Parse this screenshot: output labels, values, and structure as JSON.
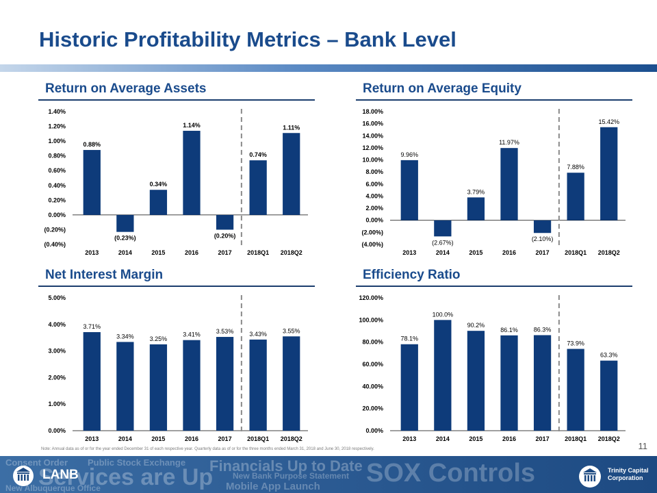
{
  "title": "Historic Profitability Metrics – Bank Level",
  "panels": {
    "roaa": {
      "heading": "Return on Average Assets"
    },
    "roae": {
      "heading": "Return on Average Equity"
    },
    "nim": {
      "heading": "Net Interest Margin"
    },
    "eff": {
      "heading": "Efficiency Ratio"
    }
  },
  "chart_data": [
    {
      "id": "roaa",
      "type": "bar",
      "title": "Return on Average Assets",
      "categories": [
        "2013",
        "2014",
        "2015",
        "2016",
        "2017",
        "2018Q1",
        "2018Q2"
      ],
      "values": [
        0.88,
        -0.23,
        0.34,
        1.14,
        -0.2,
        0.74,
        1.11
      ],
      "data_labels": [
        "0.88%",
        "(0.23%)",
        "0.34%",
        "1.14%",
        "(0.20%)",
        "0.74%",
        "1.11%"
      ],
      "ylim": [
        -0.4,
        1.4
      ],
      "yticks": [
        -0.4,
        -0.2,
        0.0,
        0.2,
        0.4,
        0.6,
        0.8,
        1.0,
        1.2,
        1.4
      ],
      "ytick_labels": [
        "(0.40%)",
        "(0.20%)",
        "0.00%",
        "0.20%",
        "0.40%",
        "0.60%",
        "0.80%",
        "1.00%",
        "1.20%",
        "1.40%"
      ],
      "divider_after": "2017",
      "bar_color": "#0e3b7a"
    },
    {
      "id": "roae",
      "type": "bar",
      "title": "Return on Average Equity",
      "categories": [
        "2013",
        "2014",
        "2015",
        "2016",
        "2017",
        "2018Q1",
        "2018Q2"
      ],
      "values": [
        9.96,
        -2.67,
        3.79,
        11.97,
        -2.1,
        7.88,
        15.42
      ],
      "data_labels": [
        "9.96%",
        "(2.67%)",
        "3.79%",
        "11.97%",
        "(2.10%)",
        "7.88%",
        "15.42%"
      ],
      "ylim": [
        -4,
        18
      ],
      "yticks": [
        -4,
        -2,
        0,
        2,
        4,
        6,
        8,
        10,
        12,
        14,
        16,
        18
      ],
      "ytick_labels": [
        "(4.00%)",
        "(2.00%)",
        "0.00%",
        "2.00%",
        "4.00%",
        "6.00%",
        "8.00%",
        "10.00%",
        "12.00%",
        "14.00%",
        "16.00%",
        "18.00%"
      ],
      "divider_after": "2017",
      "bar_color": "#0e3b7a"
    },
    {
      "id": "nim",
      "type": "bar",
      "title": "Net Interest Margin",
      "categories": [
        "2013",
        "2014",
        "2015",
        "2016",
        "2017",
        "2018Q1",
        "2018Q2"
      ],
      "values": [
        3.71,
        3.34,
        3.25,
        3.41,
        3.53,
        3.43,
        3.55
      ],
      "data_labels": [
        "3.71%",
        "3.34%",
        "3.25%",
        "3.41%",
        "3.53%",
        "3.43%",
        "3.55%"
      ],
      "ylim": [
        0,
        5
      ],
      "yticks": [
        0,
        1,
        2,
        3,
        4,
        5
      ],
      "ytick_labels": [
        "0.00%",
        "1.00%",
        "2.00%",
        "3.00%",
        "4.00%",
        "5.00%"
      ],
      "divider_after": "2017",
      "bar_color": "#0e3b7a"
    },
    {
      "id": "eff",
      "type": "bar",
      "title": "Efficiency Ratio",
      "categories": [
        "2013",
        "2014",
        "2015",
        "2016",
        "2017",
        "2018Q1",
        "2018Q2"
      ],
      "values": [
        78.1,
        100.0,
        90.2,
        86.1,
        86.3,
        73.9,
        63.3
      ],
      "data_labels": [
        "78.1%",
        "100.0%",
        "90.2%",
        "86.1%",
        "86.3%",
        "73.9%",
        "63.3%"
      ],
      "ylim": [
        0,
        120
      ],
      "yticks": [
        0,
        20,
        40,
        60,
        80,
        100,
        120
      ],
      "ytick_labels": [
        "0.00%",
        "20.00%",
        "40.00%",
        "60.00%",
        "80.00%",
        "100.00%",
        "120.00%"
      ],
      "divider_after": "2017",
      "bar_color": "#0e3b7a"
    }
  ],
  "footnote": "Note: Annual data as of or for the year ended December 31 of each respective year. Quarterly data as of or for the three months ended March 31, 2018 and June 30, 2018 respectively.",
  "page_number": "11",
  "footer": {
    "watermarks": [
      "Consent Order",
      "Public Stock Exchange",
      "Services are Up",
      "New Albuquerque Office",
      "Financials Up to Date",
      "New Bank Purpose Statement",
      "Mobile App Launch",
      "SOX Controls"
    ],
    "left_logo_text": "LANB",
    "right_logo_line1": "Trinity Capital",
    "right_logo_line2": "Corporation"
  }
}
